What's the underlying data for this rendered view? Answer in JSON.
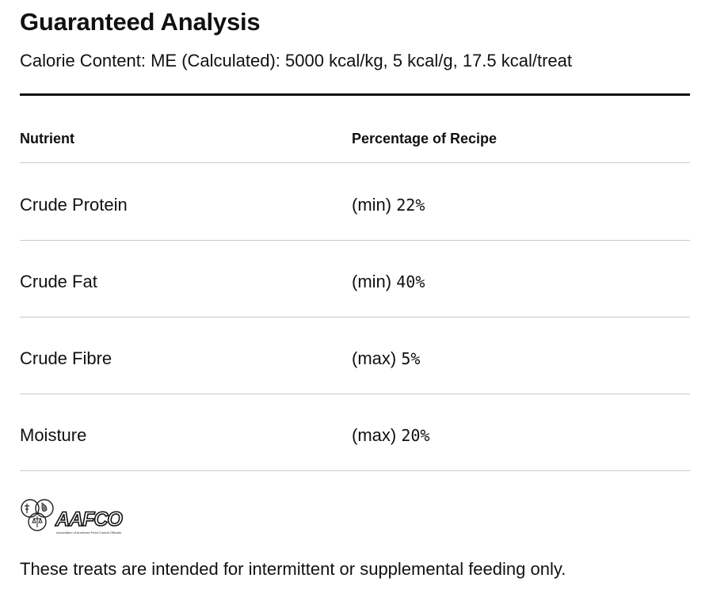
{
  "heading": {
    "title": "Guaranteed Analysis",
    "calorie_content": "Calorie Content: ME (Calculated): 5000 kcal/kg, 5 kcal/g, 17.5 kcal/treat"
  },
  "table": {
    "columns": [
      "Nutrient",
      "Percentage of Recipe"
    ],
    "rows": [
      {
        "nutrient": "Crude Protein",
        "qualifier": "(min)",
        "value": "22%"
      },
      {
        "nutrient": "Crude Fat",
        "qualifier": "(min)",
        "value": "40%"
      },
      {
        "nutrient": "Crude Fibre",
        "qualifier": "(max)",
        "value": "5%"
      },
      {
        "nutrient": "Moisture",
        "qualifier": "(max)",
        "value": "20%"
      }
    ]
  },
  "logo": {
    "name": "AAFCO",
    "subtitle": "Association of American Feed Control Officials"
  },
  "footer": {
    "note": "These treats are intended for intermittent or supplemental feeding only."
  }
}
